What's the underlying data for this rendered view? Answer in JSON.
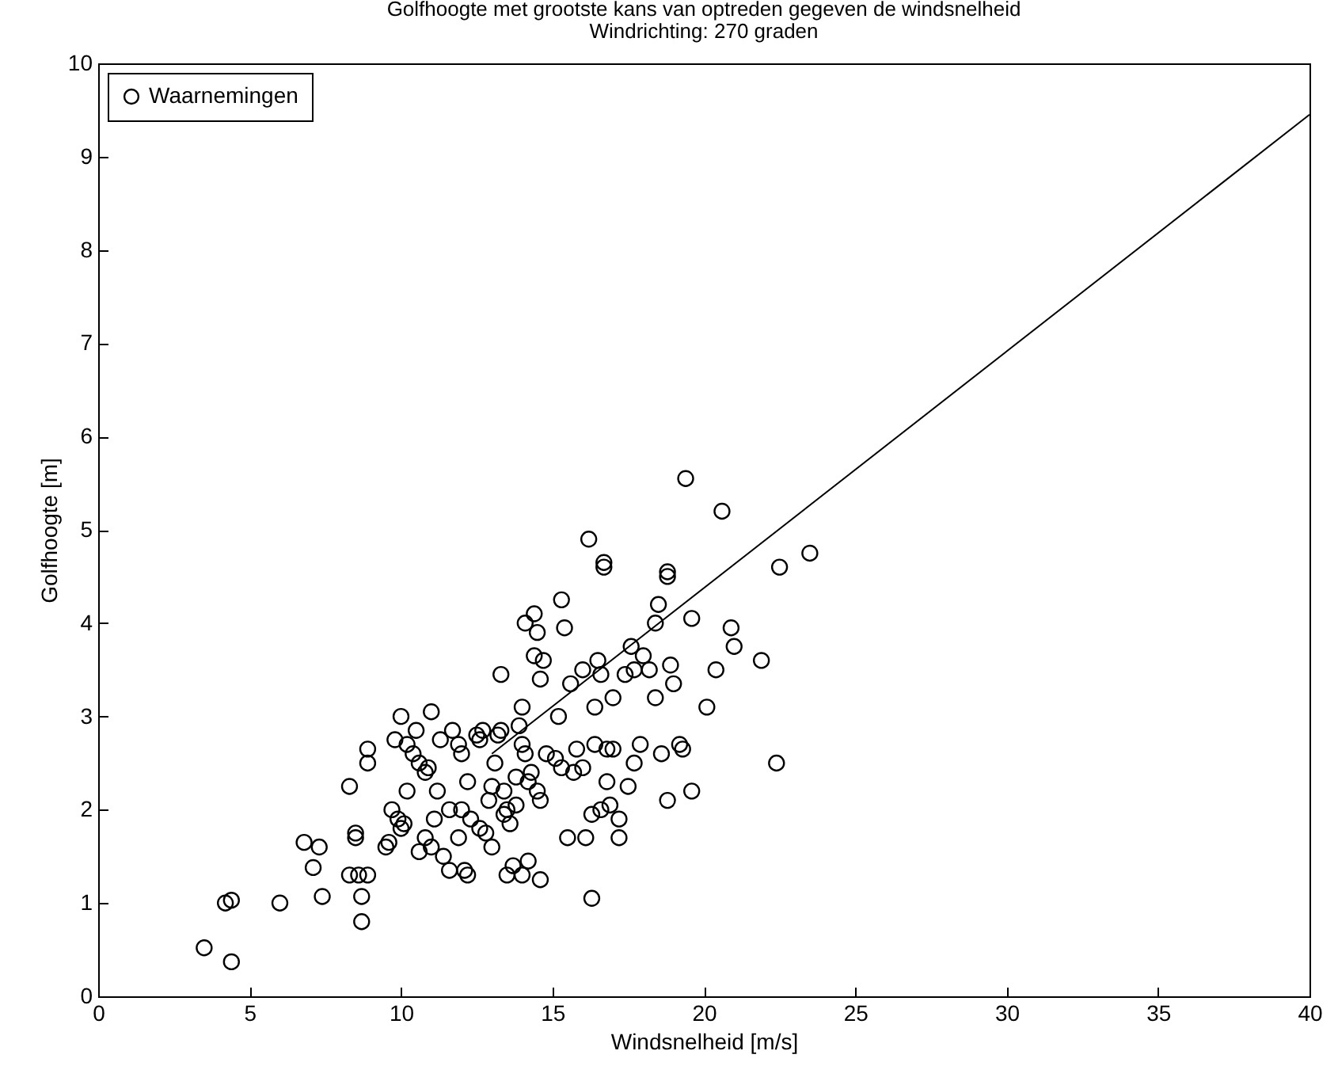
{
  "chart_data": {
    "type": "scatter",
    "title": "Golfhoogte met grootste kans van optreden gegeven de windsnelheid",
    "subtitle": "Windrichting: 270 graden",
    "xlabel": "Windsnelheid [m/s]",
    "ylabel": "Golfhoogte [m]",
    "xlim": [
      0,
      40
    ],
    "ylim": [
      0,
      10
    ],
    "xticks": [
      0,
      5,
      10,
      15,
      20,
      25,
      30,
      35,
      40
    ],
    "yticks": [
      0,
      1,
      2,
      3,
      4,
      5,
      6,
      7,
      8,
      9,
      10
    ],
    "grid": false,
    "legend": "top left",
    "series": [
      {
        "name": "Waarnemingen",
        "marker": "circle",
        "color": "#000000",
        "x": [
          3.5,
          4.2,
          4.4,
          4.4,
          6.0,
          6.8,
          7.1,
          7.3,
          7.4,
          8.3,
          8.5,
          8.5,
          8.6,
          8.7,
          8.7,
          8.9,
          8.3,
          8.9,
          8.9,
          9.5,
          9.6,
          9.7,
          9.8,
          9.9,
          10.0,
          10.1,
          10.2,
          10.0,
          10.2,
          10.4,
          10.5,
          10.6,
          10.8,
          10.6,
          10.8,
          11.0,
          11.1,
          11.2,
          11.0,
          11.3,
          11.4,
          11.6,
          11.7,
          11.9,
          11.9,
          12.0,
          12.1,
          12.2,
          12.2,
          12.5,
          12.6,
          12.7,
          12.6,
          12.9,
          13.0,
          13.1,
          13.2,
          13.3,
          13.4,
          13.5,
          13.4,
          13.6,
          13.7,
          13.5,
          13.8,
          13.9,
          14.0,
          14.0,
          14.1,
          14.0,
          14.2,
          14.3,
          14.4,
          14.5,
          14.4,
          14.5,
          14.6,
          14.6,
          14.6,
          14.7,
          14.8,
          15.1,
          15.2,
          15.3,
          15.4,
          15.3,
          15.5,
          15.6,
          15.7,
          15.8,
          16.0,
          16.1,
          16.0,
          16.2,
          16.3,
          16.3,
          16.4,
          16.4,
          16.5,
          16.6,
          16.6,
          16.7,
          16.7,
          16.8,
          16.8,
          16.9,
          17.0,
          17.0,
          17.2,
          17.2,
          17.4,
          17.5,
          17.6,
          17.7,
          17.7,
          17.9,
          18.0,
          18.2,
          18.4,
          18.5,
          18.4,
          18.6,
          18.8,
          18.8,
          18.9,
          18.8,
          19.0,
          19.2,
          19.3,
          19.4,
          19.6,
          19.6,
          20.1,
          20.4,
          20.6,
          20.9,
          21.0,
          21.9,
          22.4,
          22.5,
          23.5,
          10.9,
          11.6,
          12.3,
          12.0,
          12.8,
          13.0,
          13.3,
          13.8,
          14.1,
          14.2
        ],
        "values": [
          0.52,
          1.0,
          1.03,
          0.37,
          1.0,
          1.65,
          1.38,
          1.6,
          1.07,
          1.3,
          1.75,
          1.7,
          1.3,
          1.07,
          0.8,
          1.3,
          2.25,
          2.65,
          2.5,
          1.6,
          1.65,
          2.0,
          2.75,
          1.9,
          1.8,
          1.85,
          2.2,
          3.0,
          2.7,
          2.6,
          2.85,
          2.5,
          2.4,
          1.55,
          1.7,
          1.6,
          1.9,
          2.2,
          3.05,
          2.75,
          1.5,
          1.35,
          2.85,
          2.7,
          1.7,
          2.0,
          1.35,
          1.3,
          2.3,
          2.8,
          2.75,
          2.85,
          1.8,
          2.1,
          1.6,
          2.5,
          2.8,
          3.45,
          2.2,
          2.0,
          1.95,
          1.85,
          1.4,
          1.3,
          2.35,
          2.9,
          2.7,
          3.1,
          4.0,
          1.3,
          1.45,
          2.4,
          3.65,
          3.9,
          4.1,
          2.2,
          2.1,
          3.4,
          1.25,
          3.6,
          2.6,
          2.55,
          3.0,
          4.25,
          3.95,
          2.45,
          1.7,
          3.35,
          2.4,
          2.65,
          2.45,
          1.7,
          3.5,
          4.9,
          1.95,
          1.05,
          2.7,
          3.1,
          3.6,
          3.45,
          2.0,
          4.65,
          4.6,
          2.65,
          2.3,
          2.05,
          3.2,
          2.65,
          1.9,
          1.7,
          3.45,
          2.25,
          3.75,
          3.5,
          2.5,
          2.7,
          3.65,
          3.5,
          3.2,
          4.2,
          4.0,
          2.6,
          4.55,
          4.5,
          3.55,
          2.1,
          3.35,
          2.7,
          2.65,
          5.55,
          4.05,
          2.2,
          3.1,
          3.5,
          5.2,
          3.95,
          3.75,
          3.6,
          2.5,
          4.6,
          4.75,
          2.45,
          2.0,
          1.9,
          2.6,
          1.75,
          2.25,
          2.85,
          2.05,
          2.6,
          2.3
        ]
      },
      {
        "type": "line",
        "color": "#000000",
        "x": [
          13,
          40
        ],
        "values": [
          2.6,
          9.45
        ]
      }
    ]
  }
}
